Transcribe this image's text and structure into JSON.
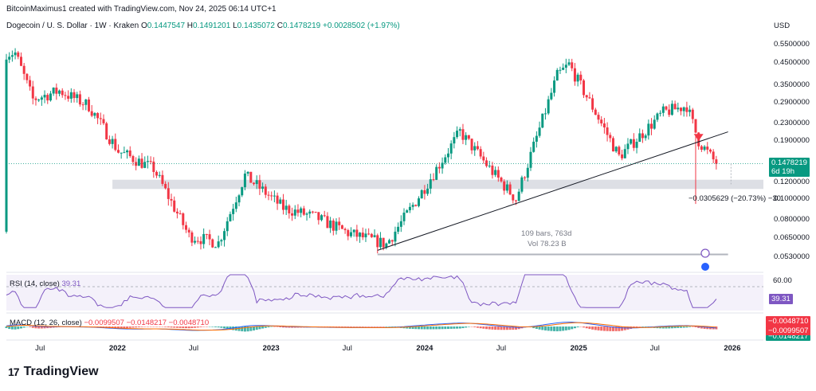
{
  "header": {
    "line1": "BitcoinMaximus1 created with TradingView.com, Nov 24, 2025 06:14 UTC+1",
    "symbol": "Dogecoin / U. S. Dollar · 1W · Kraken",
    "o_label": "O",
    "o_value": "0.1447547",
    "h_label": "H",
    "h_value": "0.1491201",
    "l_label": "L",
    "l_value": "0.1435072",
    "c_label": "C",
    "c_value": "0.1478219",
    "change": "+0.0028502 (+1.97%)"
  },
  "price_axis": {
    "currency": "USD",
    "labels": [
      "0.5500000",
      "0.4500000",
      "0.3500000",
      "0.2900000",
      "0.2300000",
      "0.1900000",
      "0.1200000",
      "0.1000000",
      "0.0800000",
      "0.0650000",
      "0.0530000"
    ],
    "last_price": "0.1478219",
    "countdown": "6d 19h"
  },
  "x_axis": {
    "labels": [
      "Jul",
      "2022",
      "Jul",
      "2023",
      "Jul",
      "2024",
      "Jul",
      "2025",
      "Jul",
      "2026"
    ]
  },
  "measure": {
    "change_text": "−0.0305629 (−20.73%) −30",
    "bars_text": "109 bars, 763d",
    "vol_text": "Vol 78.23 B"
  },
  "rsi": {
    "title": "RSI (14, close)",
    "value_text": "39.31",
    "level_label": "60.00",
    "value_tag": "39.31"
  },
  "macd": {
    "title": "MACD (12, 26, close)",
    "v1": "−0.0099507",
    "v2": "−0.0148217",
    "v3": "−0.0048710",
    "tag1": "−0.0048710",
    "tag2": "−0.0099507",
    "tag3": "−0.0148217"
  },
  "brand": {
    "logo": "17",
    "name": "TradingView"
  },
  "colors": {
    "up": "#089981",
    "down": "#f23645",
    "rsi": "#7e57c2",
    "rsi_band": "#ede7f6",
    "macd_line": "#2962ff",
    "signal_line": "#ff6d00",
    "zone": "#d1d4dc"
  },
  "chart_data": {
    "type": "candlestick",
    "title": "Dogecoin / U. S. Dollar · 1W · Kraken",
    "y_scale": "log",
    "ylim": [
      0.048,
      0.62
    ],
    "x_range": [
      "2021-04-12",
      "2026-03-16"
    ],
    "timeframe": "1W",
    "approximate_weekly_closes": [
      {
        "x": "2021-05-03",
        "close": 0.5
      },
      {
        "x": "2021-06-14",
        "close": 0.3
      },
      {
        "x": "2021-08-16",
        "close": 0.33
      },
      {
        "x": "2021-10-25",
        "close": 0.28
      },
      {
        "x": "2022-01-03",
        "close": 0.17
      },
      {
        "x": "2022-03-28",
        "close": 0.14
      },
      {
        "x": "2022-06-20",
        "close": 0.067
      },
      {
        "x": "2022-08-29",
        "close": 0.062
      },
      {
        "x": "2022-10-31",
        "close": 0.13
      },
      {
        "x": "2023-01-30",
        "close": 0.091
      },
      {
        "x": "2023-04-17",
        "close": 0.082
      },
      {
        "x": "2023-07-03",
        "close": 0.069
      },
      {
        "x": "2023-10-02",
        "close": 0.061
      },
      {
        "x": "2023-12-11",
        "close": 0.098
      },
      {
        "x": "2024-03-25",
        "close": 0.21
      },
      {
        "x": "2024-06-17",
        "close": 0.13
      },
      {
        "x": "2024-08-05",
        "close": 0.1
      },
      {
        "x": "2024-11-11",
        "close": 0.39
      },
      {
        "x": "2024-12-09",
        "close": 0.44
      },
      {
        "x": "2025-02-10",
        "close": 0.26
      },
      {
        "x": "2025-04-07",
        "close": 0.16
      },
      {
        "x": "2025-07-21",
        "close": 0.26
      },
      {
        "x": "2025-09-15",
        "close": 0.28
      },
      {
        "x": "2025-10-13",
        "close": 0.19
      },
      {
        "x": "2025-11-24",
        "close": 0.1478219
      }
    ],
    "support_zone": [
      0.112,
      0.124
    ],
    "trendline": [
      {
        "x": "2023-09-11",
        "y": 0.057
      },
      {
        "x": "2025-12-22",
        "y": 0.21
      }
    ],
    "horizontal_line": {
      "y": 0.0545,
      "from": "2023-09-11",
      "to": "2025-12-22"
    },
    "rsi": {
      "last": 39.31,
      "level": 60
    },
    "macd": {
      "macd": -0.004871,
      "signal": -0.0099507,
      "histogram": -0.0148217
    }
  }
}
